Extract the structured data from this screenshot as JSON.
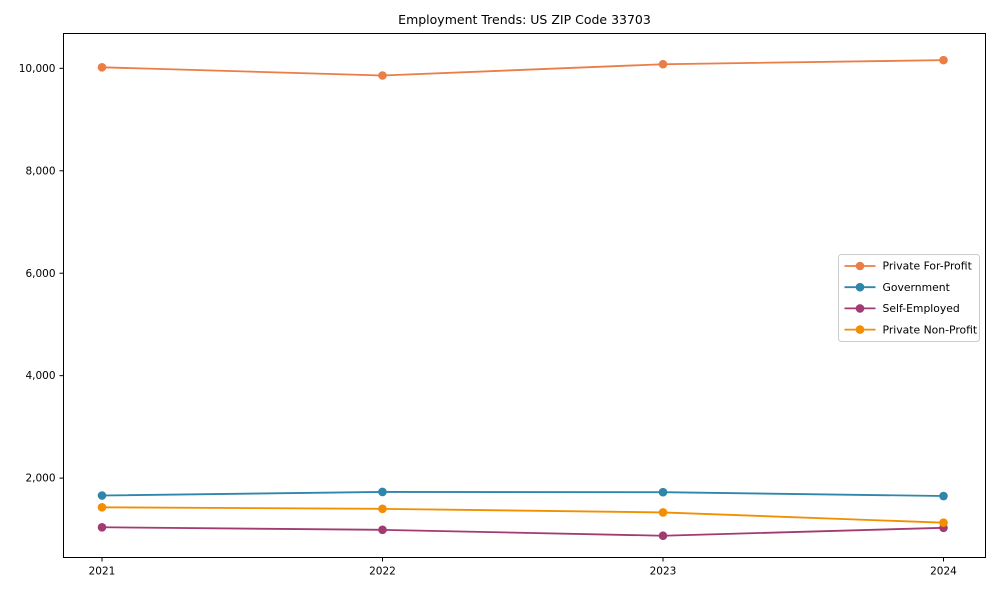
{
  "figure": {
    "background": "#ffffff",
    "axis_color": "#000000",
    "text_color": "#000000"
  },
  "chart_data": {
    "type": "line",
    "title": "Employment Trends: US ZIP Code 33703",
    "xlabel": "",
    "ylabel": "",
    "x": [
      2021,
      2022,
      2023,
      2024
    ],
    "x_tick_labels": [
      "2021",
      "2022",
      "2023",
      "2024"
    ],
    "y_ticks": [
      {
        "value": 2000,
        "label": "2,000"
      },
      {
        "value": 4000,
        "label": "4,000"
      },
      {
        "value": 6000,
        "label": "6,000"
      },
      {
        "value": 8000,
        "label": "8,000"
      },
      {
        "value": 10000,
        "label": "10,000"
      }
    ],
    "ylim": [
      450,
      10680
    ],
    "grid": false,
    "marker": "circle",
    "series": [
      {
        "name": "Private For-Profit",
        "color": "#EB7D46",
        "values": [
          10020,
          9860,
          10080,
          10160
        ]
      },
      {
        "name": "Government",
        "color": "#2E86AB",
        "values": [
          1660,
          1730,
          1725,
          1650
        ]
      },
      {
        "name": "Self-Employed",
        "color": "#A23B72",
        "values": [
          1040,
          990,
          875,
          1030
        ]
      },
      {
        "name": "Private Non-Profit",
        "color": "#F18F01",
        "values": [
          1430,
          1400,
          1330,
          1130
        ]
      }
    ],
    "legend": {
      "position": "center right",
      "border_color": "#cccccc",
      "background": "#ffffff"
    }
  }
}
